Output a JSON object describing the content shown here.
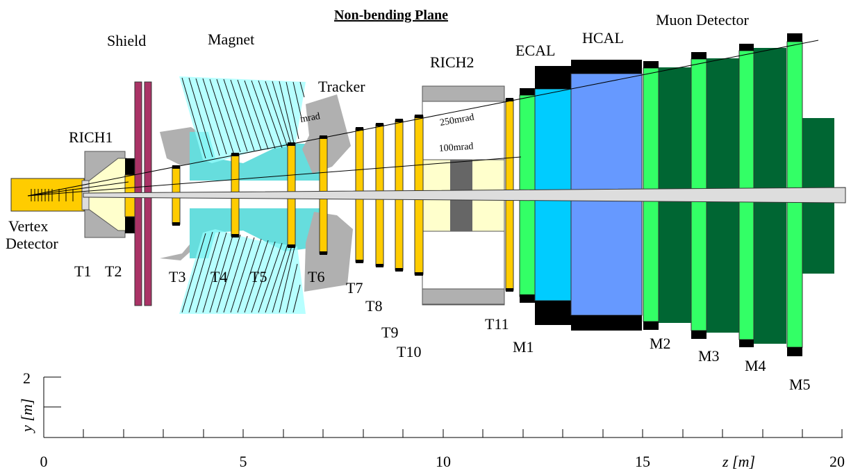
{
  "title": "Non-bending Plane",
  "components": {
    "vertex": "Vertex",
    "detector": "Detector",
    "rich1": "RICH1",
    "shield": "Shield",
    "magnet": "Magnet",
    "tracker": "Tracker",
    "rich2": "RICH2",
    "ecal": "ECAL",
    "hcal": "HCAL",
    "muon": "Muon Detector"
  },
  "angles": {
    "a250": "250mrad",
    "a100": "100mrad",
    "cut": "mrad"
  },
  "stations": {
    "t1": "T1",
    "t2": "T2",
    "t3": "T3",
    "t4": "T4",
    "t5": "T5",
    "t6": "T6",
    "t7": "T7",
    "t8": "T8",
    "t9": "T9",
    "t10": "T10",
    "t11": "T11",
    "m1": "M1",
    "m2": "M2",
    "m3": "M3",
    "m4": "M4",
    "m5": "M5"
  },
  "axes": {
    "y_label": "y [m]",
    "y_tick": "2",
    "z_label": "z [m]",
    "z_ticks": [
      "0",
      "5",
      "10",
      "15",
      "20"
    ]
  },
  "colors": {
    "tracker_yellow": "#ffcc00",
    "rich_fill": "#ffffcc",
    "grey": "#b0b0b0",
    "shield": "#aa3366",
    "magnet_cyan": "#66dddd",
    "ecal_blue": "#00ccff",
    "hcal_blue": "#6699ff",
    "muon_light": "#33ff66",
    "muon_dark": "#006633"
  }
}
